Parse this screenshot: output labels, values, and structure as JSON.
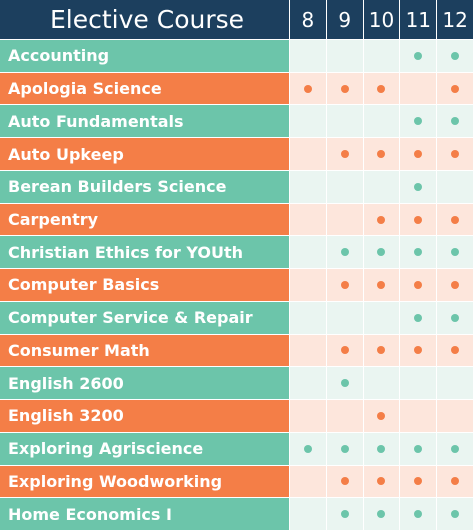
{
  "header": {
    "title": "Elective Course",
    "grades": [
      "8",
      "9",
      "10",
      "11",
      "12"
    ]
  },
  "rows": [
    {
      "course": "Accounting",
      "offered": [
        false,
        false,
        false,
        true,
        true
      ]
    },
    {
      "course": "Apologia Science",
      "offered": [
        true,
        true,
        true,
        false,
        true
      ]
    },
    {
      "course": "Auto Fundamentals",
      "offered": [
        false,
        false,
        false,
        true,
        true
      ]
    },
    {
      "course": "Auto Upkeep",
      "offered": [
        false,
        true,
        true,
        true,
        true
      ]
    },
    {
      "course": "Berean Builders Science",
      "offered": [
        false,
        false,
        false,
        true,
        false
      ]
    },
    {
      "course": "Carpentry",
      "offered": [
        false,
        false,
        true,
        true,
        true
      ]
    },
    {
      "course": "Christian Ethics for YOUth",
      "offered": [
        false,
        true,
        true,
        true,
        true
      ]
    },
    {
      "course": "Computer Basics",
      "offered": [
        false,
        true,
        true,
        true,
        true
      ]
    },
    {
      "course": "Computer Service & Repair",
      "offered": [
        false,
        false,
        false,
        true,
        true
      ]
    },
    {
      "course": "Consumer Math",
      "offered": [
        false,
        true,
        true,
        true,
        true
      ]
    },
    {
      "course": "English 2600",
      "offered": [
        false,
        true,
        false,
        false,
        false
      ]
    },
    {
      "course": "English 3200",
      "offered": [
        false,
        false,
        true,
        false,
        false
      ]
    },
    {
      "course": "Exploring Agriscience",
      "offered": [
        true,
        true,
        true,
        true,
        true
      ]
    },
    {
      "course": "Exploring Woodworking",
      "offered": [
        false,
        true,
        true,
        true,
        true
      ]
    },
    {
      "course": "Home Economics I",
      "offered": [
        false,
        true,
        true,
        true,
        true
      ]
    }
  ]
}
